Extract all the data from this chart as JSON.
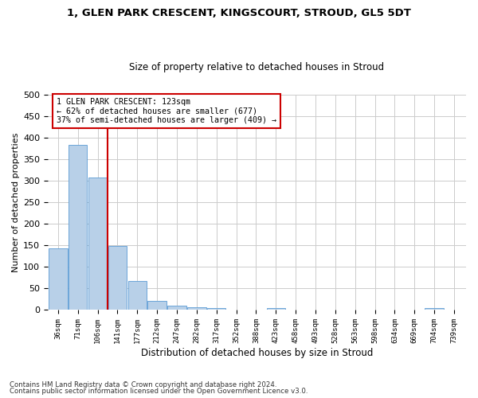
{
  "title1": "1, GLEN PARK CRESCENT, KINGSCOURT, STROUD, GL5 5DT",
  "title2": "Size of property relative to detached houses in Stroud",
  "xlabel": "Distribution of detached houses by size in Stroud",
  "ylabel": "Number of detached properties",
  "bar_color": "#b8d0e8",
  "bar_edge_color": "#5b9bd5",
  "categories": [
    "36sqm",
    "71sqm",
    "106sqm",
    "141sqm",
    "177sqm",
    "212sqm",
    "247sqm",
    "282sqm",
    "317sqm",
    "352sqm",
    "388sqm",
    "423sqm",
    "458sqm",
    "493sqm",
    "528sqm",
    "563sqm",
    "598sqm",
    "634sqm",
    "669sqm",
    "704sqm",
    "739sqm"
  ],
  "values": [
    143,
    383,
    308,
    148,
    68,
    22,
    10,
    7,
    4,
    0,
    0,
    4,
    0,
    0,
    0,
    0,
    0,
    0,
    0,
    4,
    0
  ],
  "red_line_x": 123,
  "ylim": [
    0,
    500
  ],
  "yticks": [
    0,
    50,
    100,
    150,
    200,
    250,
    300,
    350,
    400,
    450,
    500
  ],
  "annotation_text": "1 GLEN PARK CRESCENT: 123sqm\n← 62% of detached houses are smaller (677)\n37% of semi-detached houses are larger (409) →",
  "annotation_box_color": "#ffffff",
  "annotation_box_edge": "#cc0000",
  "footnote1": "Contains HM Land Registry data © Crown copyright and database right 2024.",
  "footnote2": "Contains public sector information licensed under the Open Government Licence v3.0.",
  "background_color": "#ffffff",
  "grid_color": "#cccccc"
}
